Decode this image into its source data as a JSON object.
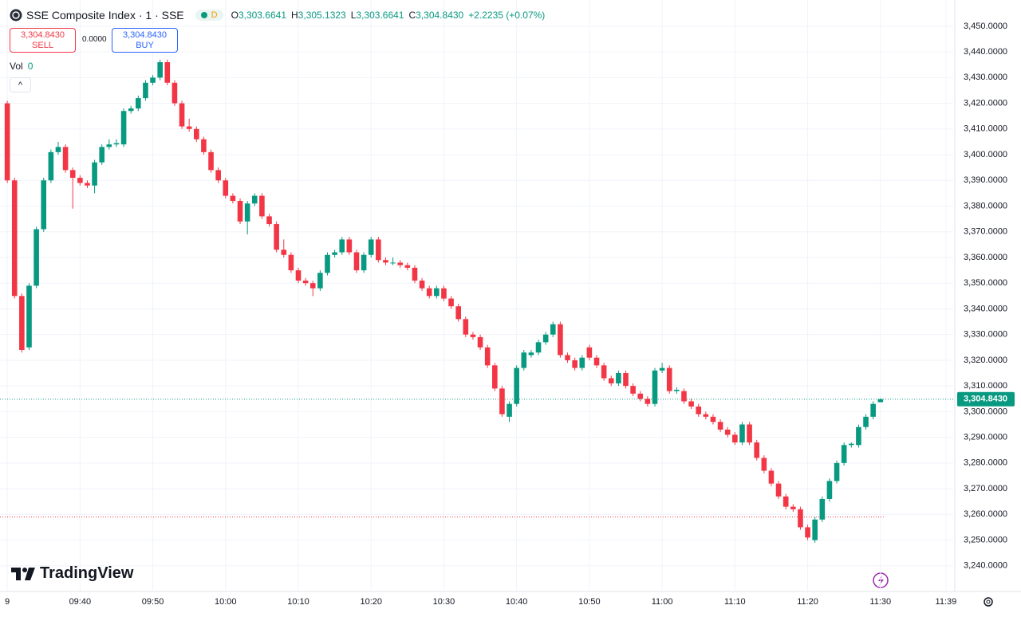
{
  "header": {
    "symbol": "SSE Composite Index · 1 · SSE",
    "badge": "D",
    "ohlc": [
      {
        "label": "O",
        "value": "3,303.6641"
      },
      {
        "label": "H",
        "value": "3,305.1323"
      },
      {
        "label": "L",
        "value": "3,303.6641"
      },
      {
        "label": "C",
        "value": "3,304.8430"
      }
    ],
    "change": "+2.2235 (+0.07%)"
  },
  "trade": {
    "sell_price": "3,304.8430",
    "sell": "SELL",
    "spread": "0.0000",
    "buy_price": "3,304.8430",
    "buy": "BUY"
  },
  "volume": {
    "label": "Vol",
    "value": "0"
  },
  "logo": "TradingView",
  "chart_data": {
    "type": "candlestick",
    "up_color": "#089981",
    "down_color": "#f23645",
    "grid": true,
    "x": [
      "09:30",
      "09:31",
      "09:32",
      "09:33",
      "09:34",
      "09:35",
      "09:36",
      "09:37",
      "09:38",
      "09:39",
      "09:40",
      "09:41",
      "09:42",
      "09:43",
      "09:44",
      "09:45",
      "09:46",
      "09:47",
      "09:48",
      "09:49",
      "09:50",
      "09:51",
      "09:52",
      "09:53",
      "09:54",
      "09:55",
      "09:56",
      "09:57",
      "09:58",
      "09:59",
      "10:00",
      "10:01",
      "10:02",
      "10:03",
      "10:04",
      "10:05",
      "10:06",
      "10:07",
      "10:08",
      "10:09",
      "10:10",
      "10:11",
      "10:12",
      "10:13",
      "10:14",
      "10:15",
      "10:16",
      "10:17",
      "10:18",
      "10:19",
      "10:20",
      "10:21",
      "10:22",
      "10:23",
      "10:24",
      "10:25",
      "10:26",
      "10:27",
      "10:28",
      "10:29",
      "10:30",
      "10:31",
      "10:32",
      "10:33",
      "10:34",
      "10:35",
      "10:36",
      "10:37",
      "10:38",
      "10:39",
      "10:40",
      "10:41",
      "10:42",
      "10:43",
      "10:44",
      "10:45",
      "10:46",
      "10:47",
      "10:48",
      "10:49",
      "10:50",
      "10:51",
      "10:52",
      "10:53",
      "10:54",
      "10:55",
      "10:56",
      "10:57",
      "10:58",
      "10:59",
      "11:00",
      "11:01",
      "11:02",
      "11:03",
      "11:04",
      "11:05",
      "11:06",
      "11:07",
      "11:08",
      "11:09",
      "11:10",
      "11:11",
      "11:12",
      "11:13",
      "11:14",
      "11:15",
      "11:16",
      "11:17",
      "11:18",
      "11:19",
      "11:20",
      "11:21",
      "11:22",
      "11:23",
      "11:24",
      "11:25",
      "11:26",
      "11:27",
      "11:28",
      "11:29",
      "11:30"
    ],
    "open": [
      3420,
      3390,
      3345,
      3325,
      3349,
      3371,
      3390,
      3401,
      3403,
      3394,
      3391,
      3389,
      3388,
      3397,
      3403,
      3404,
      3404,
      3417,
      3418,
      3422,
      3428,
      3430,
      3436,
      3428,
      3420,
      3411,
      3410,
      3406,
      3401,
      3394,
      3390,
      3384,
      3382,
      3374,
      3381,
      3384,
      3376,
      3373,
      3363,
      3361,
      3355,
      3351,
      3350,
      3348,
      3354,
      3361,
      3362,
      3367,
      3362,
      3355,
      3361,
      3367,
      3359,
      3358,
      3358,
      3357,
      3356,
      3351,
      3348,
      3345,
      3348,
      3344,
      3341,
      3336,
      3330,
      3329,
      3325,
      3318,
      3309,
      3298,
      3303,
      3317,
      3322,
      3323,
      3327,
      3330,
      3334,
      3322,
      3320,
      3317,
      3325,
      3321,
      3318,
      3313,
      3311,
      3315,
      3310,
      3307,
      3305,
      3303,
      3316,
      3317,
      3308,
      3308,
      3304,
      3302,
      3299,
      3298,
      3296,
      3293,
      3291,
      3288,
      3295,
      3288,
      3282,
      3277,
      3272,
      3267,
      3263,
      3262,
      3255,
      3250,
      3258,
      3266,
      3273,
      3280,
      3287,
      3287,
      3294,
      3298,
      3303.6641
    ],
    "high": [
      3421,
      3391,
      3346,
      3350,
      3372,
      3391,
      3402,
      3405,
      3404,
      3395,
      3392,
      3390,
      3398,
      3404,
      3406,
      3406,
      3418,
      3419,
      3423,
      3429,
      3431,
      3437,
      3437,
      3429,
      3421,
      3414,
      3411,
      3407,
      3402,
      3395,
      3391,
      3385,
      3383,
      3382,
      3385,
      3385,
      3377,
      3374,
      3367,
      3362,
      3356,
      3352,
      3351,
      3355,
      3362,
      3363,
      3368,
      3368,
      3363,
      3362,
      3368,
      3368,
      3360,
      3360,
      3359,
      3358,
      3357,
      3352,
      3349,
      3349,
      3349,
      3345,
      3342,
      3337,
      3331,
      3330,
      3326,
      3319,
      3310,
      3304,
      3318,
      3324,
      3324,
      3328,
      3331,
      3335,
      3335,
      3323,
      3321,
      3322,
      3326,
      3322,
      3319,
      3314,
      3316,
      3316,
      3311,
      3308,
      3306,
      3317,
      3319,
      3318,
      3309.5,
      3309,
      3305,
      3303,
      3300,
      3299,
      3297,
      3294,
      3292,
      3296,
      3296,
      3289,
      3283,
      3278,
      3273,
      3268,
      3264,
      3263,
      3256,
      3259,
      3267,
      3274,
      3281,
      3288,
      3288,
      3295,
      3299,
      3304,
      3305.1323
    ],
    "low": [
      3389,
      3344,
      3323,
      3324,
      3348,
      3370,
      3389,
      3400,
      3393,
      3379,
      3388,
      3387,
      3385,
      3396,
      3402,
      3403,
      3403,
      3416,
      3417,
      3421,
      3427,
      3429,
      3427,
      3419,
      3410,
      3409,
      3405,
      3400,
      3393,
      3389,
      3383,
      3381,
      3373,
      3369,
      3380,
      3375,
      3372,
      3362,
      3360,
      3354,
      3350,
      3349,
      3345,
      3347,
      3353,
      3360,
      3361,
      3361,
      3354,
      3354,
      3360,
      3358,
      3357,
      3357,
      3356,
      3355,
      3350,
      3347,
      3344,
      3344,
      3343,
      3340,
      3335,
      3329,
      3328,
      3324,
      3317,
      3308,
      3298,
      3296,
      3302,
      3316,
      3321,
      3322,
      3326,
      3329,
      3321,
      3319,
      3316,
      3316,
      3320,
      3317,
      3312,
      3310,
      3310,
      3309,
      3306,
      3304,
      3302,
      3302,
      3315,
      3307,
      3307,
      3303,
      3301,
      3298,
      3297,
      3295,
      3292,
      3290,
      3287,
      3287,
      3287,
      3281,
      3276,
      3271,
      3266,
      3262,
      3261,
      3254,
      3250,
      3249,
      3257,
      3265,
      3272,
      3279,
      3286,
      3286,
      3293,
      3297,
      3303.6641
    ],
    "close": [
      3390,
      3345,
      3324,
      3349,
      3371,
      3390,
      3401,
      3403,
      3394,
      3391,
      3389,
      3388,
      3397,
      3403,
      3404,
      3404.5,
      3417,
      3418,
      3422,
      3428,
      3430,
      3436,
      3428,
      3420,
      3411,
      3410,
      3406,
      3401,
      3394,
      3390,
      3384,
      3382,
      3374,
      3381,
      3384,
      3376,
      3373,
      3363,
      3361,
      3355,
      3351,
      3350,
      3348,
      3354,
      3361,
      3362,
      3367,
      3362,
      3355,
      3361,
      3367,
      3359,
      3358,
      3358,
      3357,
      3356,
      3351,
      3348,
      3345,
      3348,
      3344,
      3341,
      3336,
      3330,
      3329,
      3325,
      3318,
      3309,
      3299,
      3303,
      3317,
      3323,
      3323,
      3327,
      3330,
      3334,
      3322,
      3320,
      3317,
      3321,
      3321,
      3318,
      3313,
      3311,
      3315,
      3310,
      3307,
      3305,
      3303,
      3316,
      3317,
      3308,
      3308.5,
      3304,
      3302,
      3299,
      3298,
      3296,
      3293,
      3291,
      3288,
      3295,
      3288,
      3282,
      3277,
      3272,
      3267,
      3263,
      3262,
      3255,
      3251,
      3258,
      3266,
      3273,
      3280,
      3287,
      3287.5,
      3294,
      3298,
      3303,
      3304.843
    ],
    "xlim": [
      "09:29",
      "11:40"
    ],
    "xticks": [
      {
        "value": "09:30",
        "label": "9"
      },
      "09:40",
      "09:50",
      "10:00",
      "10:10",
      "10:20",
      "10:30",
      "10:40",
      "10:50",
      "11:00",
      "11:10",
      "11:20",
      "11:30",
      "11:39"
    ],
    "ylim": [
      3230,
      3460.2
    ],
    "yticks": [
      {
        "value": 3240,
        "label": "3,240.0000"
      },
      {
        "value": 3250,
        "label": "3,250.0000"
      },
      {
        "value": 3260,
        "label": "3,260.0000"
      },
      {
        "value": 3270,
        "label": "3,270.0000"
      },
      {
        "value": 3280,
        "label": "3,280.0000"
      },
      {
        "value": 3290,
        "label": "3,290.0000"
      },
      {
        "value": 3300,
        "label": "3,300.0000"
      },
      {
        "value": 3310,
        "label": "3,310.0000"
      },
      {
        "value": 3320,
        "label": "3,320.0000"
      },
      {
        "value": 3330,
        "label": "3,330.0000"
      },
      {
        "value": 3340,
        "label": "3,340.0000"
      },
      {
        "value": 3350,
        "label": "3,350.0000"
      },
      {
        "value": 3360,
        "label": "3,360.0000"
      },
      {
        "value": 3370,
        "label": "3,370.0000"
      },
      {
        "value": 3380,
        "label": "3,380.0000"
      },
      {
        "value": 3390,
        "label": "3,390.0000"
      },
      {
        "value": 3400,
        "label": "3,400.0000"
      },
      {
        "value": 3410,
        "label": "3,410.0000"
      },
      {
        "value": 3420,
        "label": "3,420.0000"
      },
      {
        "value": 3430,
        "label": "3,430.0000"
      },
      {
        "value": 3440,
        "label": "3,440.0000"
      },
      {
        "value": 3450,
        "label": "3,450.0000"
      }
    ],
    "last_price": {
      "value": 3304.843,
      "label": "3,304.8430",
      "color": "#089981"
    },
    "marker_line": {
      "value": 3259,
      "color": "#f23645"
    }
  }
}
